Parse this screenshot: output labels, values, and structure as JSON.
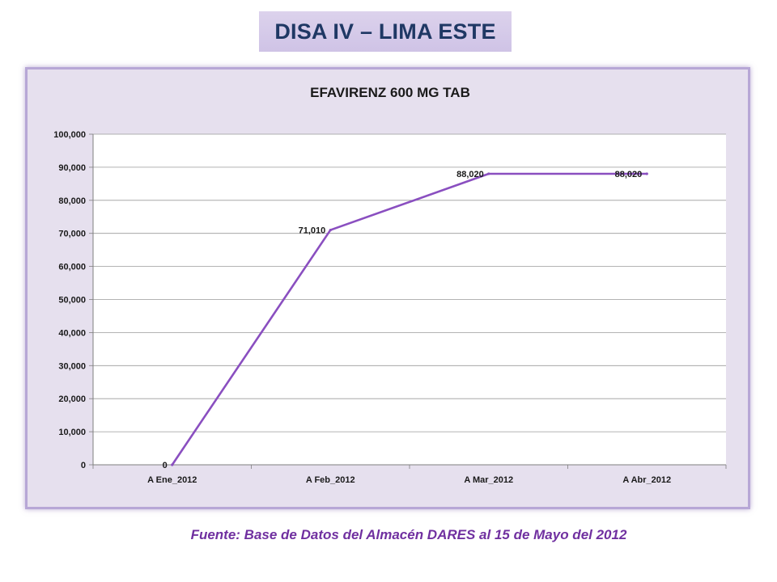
{
  "header": {
    "title": "DISA IV – LIMA ESTE"
  },
  "chart_data": {
    "type": "line",
    "title": "EFAVIRENZ 600 MG TAB",
    "categories": [
      "A Ene_2012",
      "A Feb_2012",
      "A Mar_2012",
      "A Abr_2012"
    ],
    "series": [
      {
        "values": [
          0,
          71010,
          88020,
          88020
        ],
        "labels": [
          "0",
          "71,010",
          "88,020",
          "88,020"
        ],
        "color": "#8a4fc0"
      }
    ],
    "ylim": [
      0,
      100000
    ],
    "yticks": [
      0,
      10000,
      20000,
      30000,
      40000,
      50000,
      60000,
      70000,
      80000,
      90000,
      100000
    ],
    "ytick_labels": [
      "0",
      "10,000",
      "20,000",
      "30,000",
      "40,000",
      "50,000",
      "60,000",
      "70,000",
      "80,000",
      "90,000",
      "100,000"
    ],
    "grid": true,
    "legend": "none"
  },
  "footer": {
    "source": "Fuente: Base de Datos del Almacén DARES al 15 de Mayo del 2012"
  }
}
